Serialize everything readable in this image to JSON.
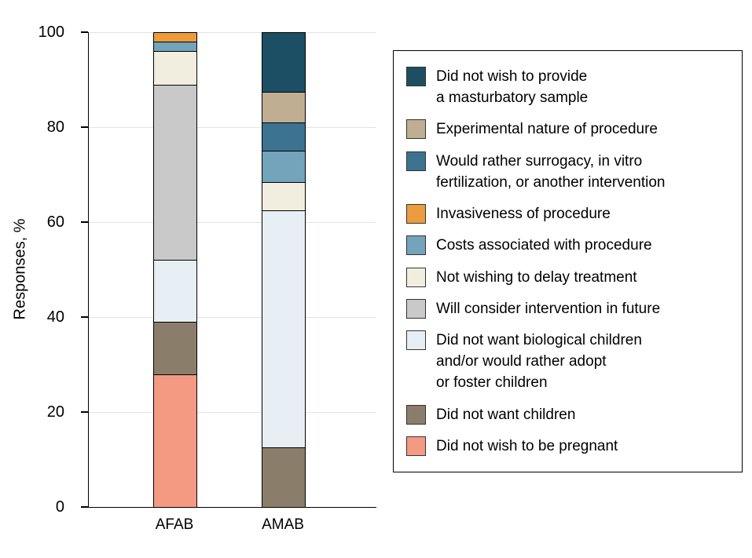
{
  "chart_data": {
    "type": "bar",
    "stacked": true,
    "title": "",
    "ylabel": "Responses, %",
    "xlabel": "",
    "ylim": [
      0,
      100
    ],
    "yticks": [
      0,
      20,
      40,
      60,
      80,
      100
    ],
    "grid": true,
    "legend_position": "right",
    "categories": [
      "AFAB",
      "AMAB"
    ],
    "series": [
      {
        "name": "masturbatory-sample",
        "label": "Did not wish to provide\na masturbatory sample",
        "color": "#1C4F63",
        "values": [
          0,
          12.5
        ]
      },
      {
        "name": "experimental-nature",
        "label": "Experimental nature of procedure",
        "color": "#BFAE92",
        "values": [
          0,
          6.5
        ]
      },
      {
        "name": "surrogacy-ivf-other",
        "label": "Would rather surrogacy, in vitro\nfertilization, or another intervention",
        "color": "#3C7390",
        "values": [
          0,
          6
        ]
      },
      {
        "name": "invasiveness",
        "label": "Invasiveness of procedure",
        "color": "#EC9C3E",
        "values": [
          2,
          0
        ]
      },
      {
        "name": "costs",
        "label": "Costs associated with procedure",
        "color": "#74A3BC",
        "values": [
          2,
          6.5
        ]
      },
      {
        "name": "delay-treatment",
        "label": "Not wishing to delay treatment",
        "color": "#F1EEDF",
        "values": [
          7,
          6
        ]
      },
      {
        "name": "consider-future",
        "label": "Will consider intervention in future",
        "color": "#C9C9C9",
        "values": [
          37,
          0
        ]
      },
      {
        "name": "no-biological-children",
        "label": "Did not want biological children\nand/or would rather adopt\nor foster children",
        "color": "#E8EFF4",
        "values": [
          13,
          50
        ]
      },
      {
        "name": "no-children",
        "label": "Did not want children",
        "color": "#8A7E6B",
        "values": [
          11,
          12.5
        ]
      },
      {
        "name": "not-pregnant",
        "label": "Did not wish to be pregnant",
        "color": "#F49A83",
        "values": [
          28,
          0
        ]
      }
    ]
  }
}
